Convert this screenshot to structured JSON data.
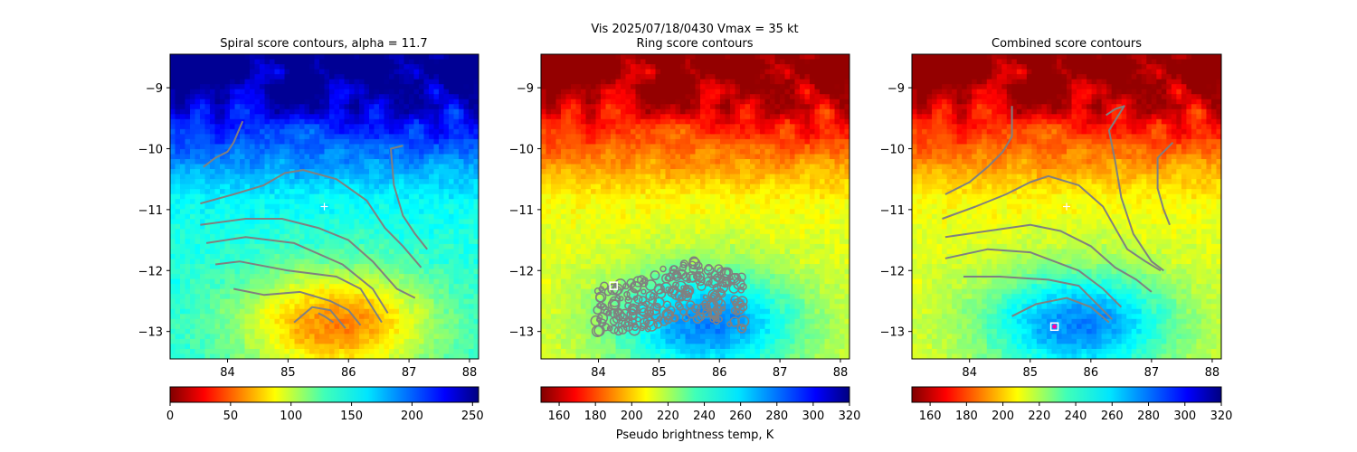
{
  "suptitle_line1": "Vis  2025/07/18/0430    Vmax = 35 kt",
  "colorbar_label": "Pseudo brightness temp, K",
  "colors": {
    "contour": "#808080",
    "marker": "#ffffff",
    "center_marker": "#ff00aa"
  },
  "chart_data": [
    {
      "type": "heatmap",
      "title": "Spiral score contours, alpha = 11.7",
      "colormap": "jet_r",
      "x_ticks": [
        84,
        85,
        86,
        87,
        88
      ],
      "y_ticks": [
        -9,
        -10,
        -11,
        -12,
        -13
      ],
      "xlim": [
        83.05,
        88.15
      ],
      "ylim": [
        -13.45,
        -8.45
      ],
      "colorbar_ticks": [
        0,
        50,
        100,
        150,
        200,
        250
      ],
      "colorbar_range": [
        0,
        255
      ],
      "markers": [
        {
          "x": 85.6,
          "y": -10.95,
          "symbol": "+"
        }
      ],
      "contours": [
        [
          [
            83.6,
            -10.3
          ],
          [
            83.8,
            -10.15
          ],
          [
            84.0,
            -10.05
          ],
          [
            84.1,
            -9.9
          ],
          [
            84.25,
            -9.55
          ]
        ],
        [
          [
            83.55,
            -10.9
          ],
          [
            84.1,
            -10.75
          ],
          [
            84.6,
            -10.6
          ],
          [
            84.95,
            -10.4
          ],
          [
            85.25,
            -10.35
          ],
          [
            85.8,
            -10.5
          ],
          [
            86.3,
            -10.85
          ],
          [
            86.6,
            -11.3
          ],
          [
            86.9,
            -11.6
          ],
          [
            87.2,
            -11.95
          ]
        ],
        [
          [
            83.55,
            -11.25
          ],
          [
            84.3,
            -11.15
          ],
          [
            84.9,
            -11.15
          ],
          [
            85.5,
            -11.3
          ],
          [
            86.0,
            -11.5
          ],
          [
            86.4,
            -11.85
          ],
          [
            86.8,
            -12.3
          ],
          [
            87.1,
            -12.45
          ]
        ],
        [
          [
            83.65,
            -11.55
          ],
          [
            84.3,
            -11.45
          ],
          [
            85.1,
            -11.55
          ],
          [
            85.9,
            -11.9
          ],
          [
            86.4,
            -12.3
          ],
          [
            86.65,
            -12.7
          ]
        ],
        [
          [
            83.8,
            -11.9
          ],
          [
            84.2,
            -11.85
          ],
          [
            85.0,
            -12.0
          ],
          [
            85.8,
            -12.1
          ],
          [
            86.2,
            -12.3
          ],
          [
            86.55,
            -12.85
          ]
        ],
        [
          [
            84.1,
            -12.3
          ],
          [
            84.6,
            -12.4
          ],
          [
            85.2,
            -12.35
          ],
          [
            85.7,
            -12.5
          ],
          [
            86.0,
            -12.65
          ],
          [
            86.2,
            -12.9
          ]
        ],
        [
          [
            85.1,
            -12.85
          ],
          [
            85.4,
            -12.6
          ],
          [
            85.7,
            -12.65
          ],
          [
            85.95,
            -12.95
          ]
        ],
        [
          [
            86.9,
            -9.95
          ],
          [
            86.7,
            -10.0
          ],
          [
            86.75,
            -10.6
          ],
          [
            86.9,
            -11.1
          ],
          [
            87.1,
            -11.4
          ],
          [
            87.3,
            -11.65
          ]
        ],
        [
          [
            85.5,
            -12.7
          ],
          [
            85.6,
            -12.75
          ],
          [
            85.75,
            -12.85
          ]
        ]
      ]
    },
    {
      "type": "heatmap",
      "title": "Ring score contours",
      "colormap": "jet_r",
      "x_ticks": [
        84,
        85,
        86,
        87,
        88
      ],
      "y_ticks": [
        -9,
        -10,
        -11,
        -12,
        -13
      ],
      "xlim": [
        83.05,
        88.15
      ],
      "ylim": [
        -13.45,
        -8.45
      ],
      "colorbar_ticks": [
        160,
        180,
        200,
        220,
        240,
        260,
        280,
        300,
        320
      ],
      "colorbar_range": [
        150,
        320
      ],
      "markers": [
        {
          "x": 84.25,
          "y": -12.25,
          "symbol": "square"
        }
      ],
      "contours": []
    },
    {
      "type": "heatmap",
      "title": "Combined score contours",
      "colormap": "jet_r",
      "x_ticks": [
        84,
        85,
        86,
        87,
        88
      ],
      "y_ticks": [
        -9,
        -10,
        -11,
        -12,
        -13
      ],
      "xlim": [
        83.05,
        88.15
      ],
      "ylim": [
        -13.45,
        -8.45
      ],
      "colorbar_ticks": [
        160,
        180,
        200,
        220,
        240,
        260,
        280,
        300,
        320
      ],
      "colorbar_range": [
        150,
        320
      ],
      "markers": [
        {
          "x": 85.6,
          "y": -10.95,
          "symbol": "+"
        },
        {
          "x": 85.4,
          "y": -12.92,
          "symbol": "square-center"
        }
      ],
      "contours": [
        [
          [
            83.6,
            -10.75
          ],
          [
            84.0,
            -10.55
          ],
          [
            84.3,
            -10.3
          ],
          [
            84.55,
            -10.05
          ],
          [
            84.7,
            -9.8
          ],
          [
            84.7,
            -9.3
          ]
        ],
        [
          [
            83.55,
            -11.15
          ],
          [
            84.1,
            -10.95
          ],
          [
            84.6,
            -10.75
          ],
          [
            85.0,
            -10.55
          ],
          [
            85.3,
            -10.45
          ],
          [
            85.8,
            -10.6
          ],
          [
            86.2,
            -10.95
          ],
          [
            86.4,
            -11.3
          ],
          [
            86.6,
            -11.65
          ],
          [
            86.9,
            -11.85
          ],
          [
            87.15,
            -12.0
          ]
        ],
        [
          [
            83.6,
            -11.45
          ],
          [
            84.3,
            -11.35
          ],
          [
            85.0,
            -11.25
          ],
          [
            85.5,
            -11.35
          ],
          [
            86.0,
            -11.6
          ],
          [
            86.4,
            -11.95
          ],
          [
            86.75,
            -12.15
          ],
          [
            87.0,
            -12.35
          ]
        ],
        [
          [
            83.6,
            -11.8
          ],
          [
            84.3,
            -11.65
          ],
          [
            85.0,
            -11.7
          ],
          [
            85.8,
            -12.0
          ],
          [
            86.2,
            -12.3
          ],
          [
            86.5,
            -12.6
          ]
        ],
        [
          [
            83.9,
            -12.1
          ],
          [
            84.5,
            -12.1
          ],
          [
            85.3,
            -12.15
          ],
          [
            85.8,
            -12.25
          ],
          [
            86.1,
            -12.55
          ],
          [
            86.35,
            -12.8
          ]
        ],
        [
          [
            84.7,
            -12.75
          ],
          [
            85.1,
            -12.55
          ],
          [
            85.6,
            -12.45
          ],
          [
            86.0,
            -12.6
          ],
          [
            86.3,
            -12.85
          ]
        ],
        [
          [
            86.25,
            -9.45
          ],
          [
            86.4,
            -9.35
          ],
          [
            86.55,
            -9.3
          ],
          [
            86.3,
            -9.7
          ],
          [
            86.4,
            -10.2
          ],
          [
            86.5,
            -10.8
          ],
          [
            86.7,
            -11.4
          ],
          [
            87.0,
            -11.85
          ],
          [
            87.2,
            -12.0
          ]
        ],
        [
          [
            87.35,
            -9.9
          ],
          [
            87.1,
            -10.15
          ],
          [
            87.1,
            -10.65
          ],
          [
            87.2,
            -11.0
          ],
          [
            87.3,
            -11.25
          ]
        ]
      ]
    }
  ]
}
